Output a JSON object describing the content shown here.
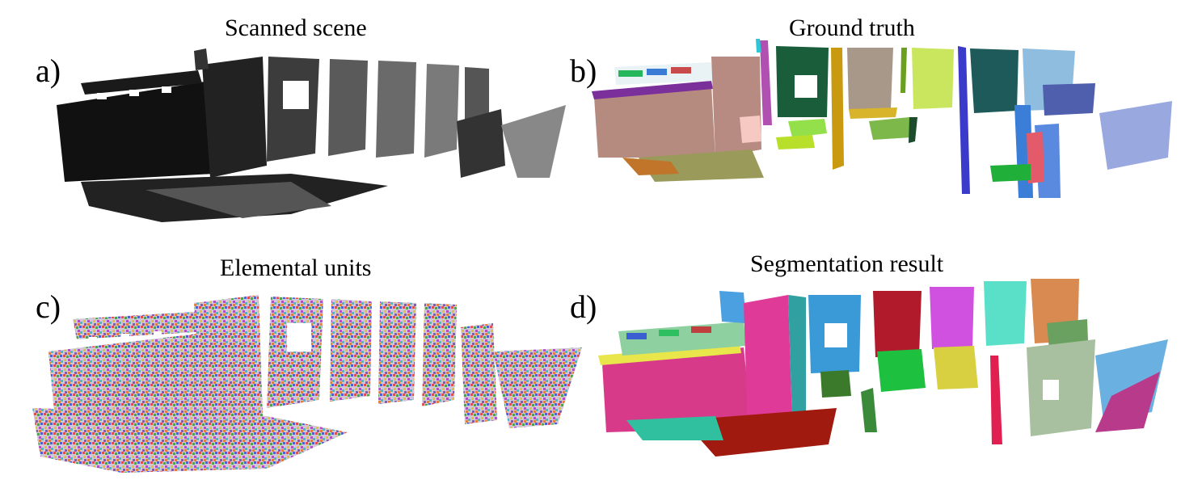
{
  "panels": [
    {
      "letter": "a)",
      "title": "Scanned scene"
    },
    {
      "letter": "b)",
      "title": "Ground truth"
    },
    {
      "letter": "c)",
      "title": "Elemental units"
    },
    {
      "letter": "d)",
      "title": "Segmentation result"
    }
  ]
}
